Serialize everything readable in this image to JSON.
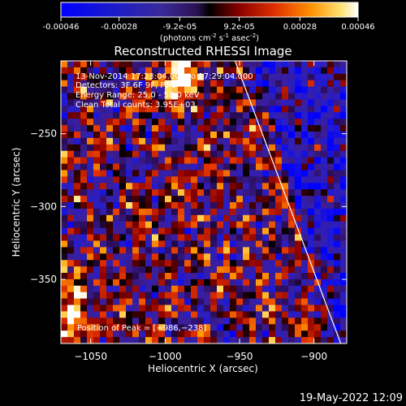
{
  "colorbar": {
    "ticks": [
      "-0.00046",
      "-0.00028",
      "-9.2e-05",
      "9.2e-05",
      "0.00028",
      "0.00046"
    ],
    "tick_values": [
      -0.00046,
      -0.00028,
      -9.2e-05,
      9.2e-05,
      0.00028,
      0.00046
    ],
    "range": [
      -0.00046,
      0.00046
    ],
    "units_parts": [
      "(photons cm",
      "-2",
      " s",
      "-1",
      " asec",
      "-2",
      ")"
    ]
  },
  "chart_data": {
    "type": "heatmap",
    "title": "Reconstructed RHESSI Image",
    "xlabel": "Heliocentric X (arcsec)",
    "ylabel": "Heliocentric Y (arcsec)",
    "xlim": [
      -1070,
      -878
    ],
    "ylim": [
      -394,
      -200
    ],
    "x_ticks": [
      -1050,
      -1000,
      -950,
      -900
    ],
    "x_tick_labels": [
      "−1050",
      "−1000",
      "−950",
      "−900"
    ],
    "y_ticks": [
      -250,
      -300,
      -350
    ],
    "y_tick_labels": [
      "−250",
      "−300",
      "−350"
    ],
    "limb_line": [
      [
        -953,
        -200
      ],
      [
        -882,
        -394
      ]
    ],
    "annotations": [
      "13-Nov-2014 17:23:04.000 to 17:29:04.000",
      "Detectors: 3F 6F 9F, Pt 0",
      "Energy Range: 25.0 - 50.0 keV",
      "Clean     Total counts: 3.95E+03"
    ],
    "peak_label": "Position of Peak = [−986,−238]",
    "peak_position": [
      -986,
      -238
    ]
  },
  "footer": {
    "timestamp": "19-May-2022 12:09"
  }
}
